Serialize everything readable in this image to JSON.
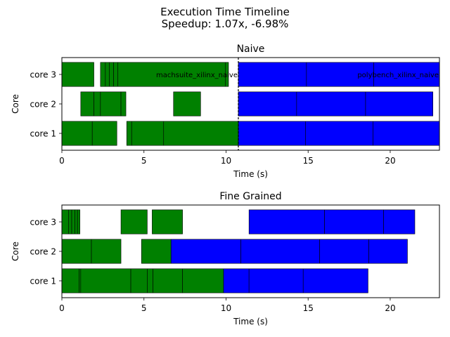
{
  "figure": {
    "title_line1": "Execution Time Timeline",
    "title_line2": "Speedup: 1.07x, -6.98%"
  },
  "colors": {
    "green": "#008000",
    "blue": "#0000ff",
    "edge": "#000000"
  },
  "chart_data": [
    {
      "type": "bar",
      "title": "Naive",
      "xlabel": "Time (s)",
      "ylabel": "Core",
      "xlim": [
        0,
        23
      ],
      "xticks": [
        0,
        5,
        10,
        15,
        20
      ],
      "xtick_labels": [
        "0",
        "5",
        "10",
        "15",
        "20"
      ],
      "categories": [
        "core 1",
        "core 2",
        "core 3"
      ],
      "divider_x": 10.75,
      "annotations": [
        {
          "text": "machsuite_xilinx_naive",
          "x_end": 10.75,
          "core": "core 3"
        },
        {
          "text": "polybench_xilinx_naive",
          "x_end": 23.0,
          "core": "core 3"
        }
      ],
      "series": [
        {
          "core": "core 1",
          "color": "green",
          "segments": [
            [
              0,
              1.85
            ],
            [
              1.85,
              3.35
            ],
            [
              3.95,
              4.25
            ],
            [
              4.25,
              6.2
            ],
            [
              6.2,
              10.75
            ]
          ]
        },
        {
          "core": "core 1",
          "color": "blue",
          "segments": [
            [
              10.75,
              14.85
            ],
            [
              14.85,
              18.95
            ],
            [
              18.95,
              23.0
            ]
          ]
        },
        {
          "core": "core 2",
          "color": "green",
          "segments": [
            [
              1.15,
              1.95
            ],
            [
              1.95,
              2.35
            ],
            [
              2.35,
              3.6
            ],
            [
              3.6,
              3.9
            ],
            [
              6.8,
              8.45
            ]
          ]
        },
        {
          "core": "core 2",
          "color": "blue",
          "segments": [
            [
              10.75,
              14.3
            ],
            [
              14.3,
              18.5
            ],
            [
              18.5,
              22.6
            ]
          ]
        },
        {
          "core": "core 3",
          "color": "green",
          "segments": [
            [
              0,
              1.95
            ],
            [
              2.35,
              2.65
            ],
            [
              2.65,
              2.9
            ],
            [
              2.9,
              3.15
            ],
            [
              3.15,
              3.4
            ],
            [
              3.4,
              9.95
            ],
            [
              9.95,
              10.15
            ]
          ]
        },
        {
          "core": "core 3",
          "color": "blue",
          "segments": [
            [
              10.75,
              14.9
            ],
            [
              14.9,
              19.0
            ],
            [
              19.0,
              23.0
            ]
          ]
        }
      ]
    },
    {
      "type": "bar",
      "title": "Fine Grained",
      "xlabel": "Time (s)",
      "ylabel": "Core",
      "xlim": [
        0,
        23
      ],
      "xticks": [
        0,
        5,
        10,
        15,
        20
      ],
      "xtick_labels": [
        "0",
        "5",
        "10",
        "15",
        "20"
      ],
      "categories": [
        "core 1",
        "core 2",
        "core 3"
      ],
      "series": [
        {
          "core": "core 1",
          "color": "green",
          "segments": [
            [
              0,
              1.05
            ],
            [
              1.05,
              1.15
            ],
            [
              1.15,
              4.2
            ],
            [
              4.2,
              5.2
            ],
            [
              5.2,
              5.55
            ],
            [
              5.55,
              7.35
            ],
            [
              7.35,
              9.85
            ]
          ]
        },
        {
          "core": "core 1",
          "color": "blue",
          "segments": [
            [
              9.85,
              11.4
            ],
            [
              11.4,
              14.7
            ],
            [
              14.7,
              18.65
            ]
          ]
        },
        {
          "core": "core 2",
          "color": "green",
          "segments": [
            [
              0,
              1.8
            ],
            [
              1.8,
              3.6
            ],
            [
              4.85,
              6.65
            ]
          ]
        },
        {
          "core": "core 2",
          "color": "blue",
          "segments": [
            [
              6.65,
              10.9
            ],
            [
              10.9,
              15.7
            ],
            [
              15.7,
              18.7
            ],
            [
              18.7,
              21.05
            ]
          ]
        },
        {
          "core": "core 3",
          "color": "green",
          "segments": [
            [
              0,
              0.4
            ],
            [
              0.4,
              0.6
            ],
            [
              0.6,
              0.8
            ],
            [
              0.8,
              0.95
            ],
            [
              0.95,
              1.1
            ],
            [
              3.6,
              5.2
            ],
            [
              5.5,
              7.35
            ]
          ]
        },
        {
          "core": "core 3",
          "color": "blue",
          "segments": [
            [
              11.4,
              16.0
            ],
            [
              16.0,
              19.6
            ],
            [
              19.6,
              21.5
            ]
          ]
        }
      ]
    }
  ]
}
